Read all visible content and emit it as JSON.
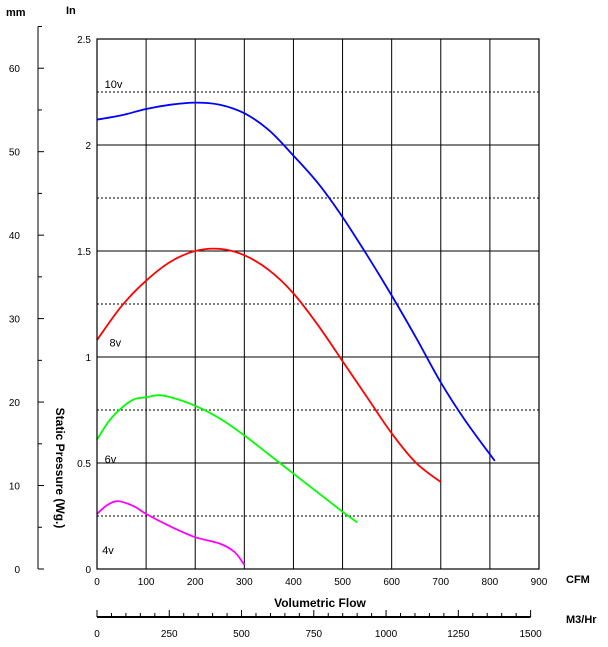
{
  "chart_data": {
    "type": "line",
    "title": "",
    "xlabel": "Volumetric Flow",
    "ylabel": "Static Pressure (Wg.)",
    "units": {
      "mm": "mm",
      "in": "In",
      "cfm": "CFM",
      "m3hr": "M3/Hr"
    },
    "xlim": [
      0,
      900
    ],
    "ylim": [
      0,
      2.5
    ],
    "x_ticks": [
      0,
      100,
      200,
      300,
      400,
      500,
      600,
      700,
      800,
      900
    ],
    "y_ticks": [
      0,
      0.5,
      1,
      1.5,
      2,
      2.5
    ],
    "mm_ticks": [
      0,
      10,
      20,
      30,
      40,
      50,
      60
    ],
    "m3hr_ticks": [
      0,
      250,
      500,
      750,
      1000,
      1250,
      1500
    ],
    "grid": true,
    "series": [
      {
        "name": "10v",
        "color": "#0000ff",
        "x": [
          0,
          50,
          100,
          150,
          200,
          250,
          300,
          350,
          400,
          450,
          500,
          550,
          600,
          650,
          700,
          750,
          810
        ],
        "y": [
          2.12,
          2.14,
          2.17,
          2.19,
          2.2,
          2.19,
          2.15,
          2.07,
          1.95,
          1.82,
          1.66,
          1.48,
          1.29,
          1.09,
          0.88,
          0.7,
          0.51
        ]
      },
      {
        "name": "8v",
        "color": "#ff0000",
        "x": [
          0,
          50,
          100,
          150,
          200,
          250,
          300,
          350,
          400,
          450,
          500,
          550,
          600,
          650,
          700
        ],
        "y": [
          1.08,
          1.24,
          1.36,
          1.45,
          1.5,
          1.51,
          1.48,
          1.41,
          1.3,
          1.15,
          0.98,
          0.81,
          0.64,
          0.5,
          0.41
        ]
      },
      {
        "name": "6v",
        "color": "#00ff00",
        "x": [
          0,
          25,
          50,
          75,
          100,
          125,
          150,
          200,
          250,
          300,
          350,
          400,
          450,
          500,
          530
        ],
        "y": [
          0.61,
          0.7,
          0.76,
          0.8,
          0.81,
          0.82,
          0.81,
          0.77,
          0.71,
          0.63,
          0.54,
          0.45,
          0.36,
          0.27,
          0.22
        ]
      },
      {
        "name": "4v",
        "color": "#ff00ff",
        "x": [
          0,
          20,
          40,
          60,
          80,
          100,
          150,
          200,
          250,
          280,
          300
        ],
        "y": [
          0.26,
          0.3,
          0.32,
          0.31,
          0.29,
          0.26,
          0.2,
          0.15,
          0.12,
          0.08,
          0.02
        ]
      }
    ]
  }
}
